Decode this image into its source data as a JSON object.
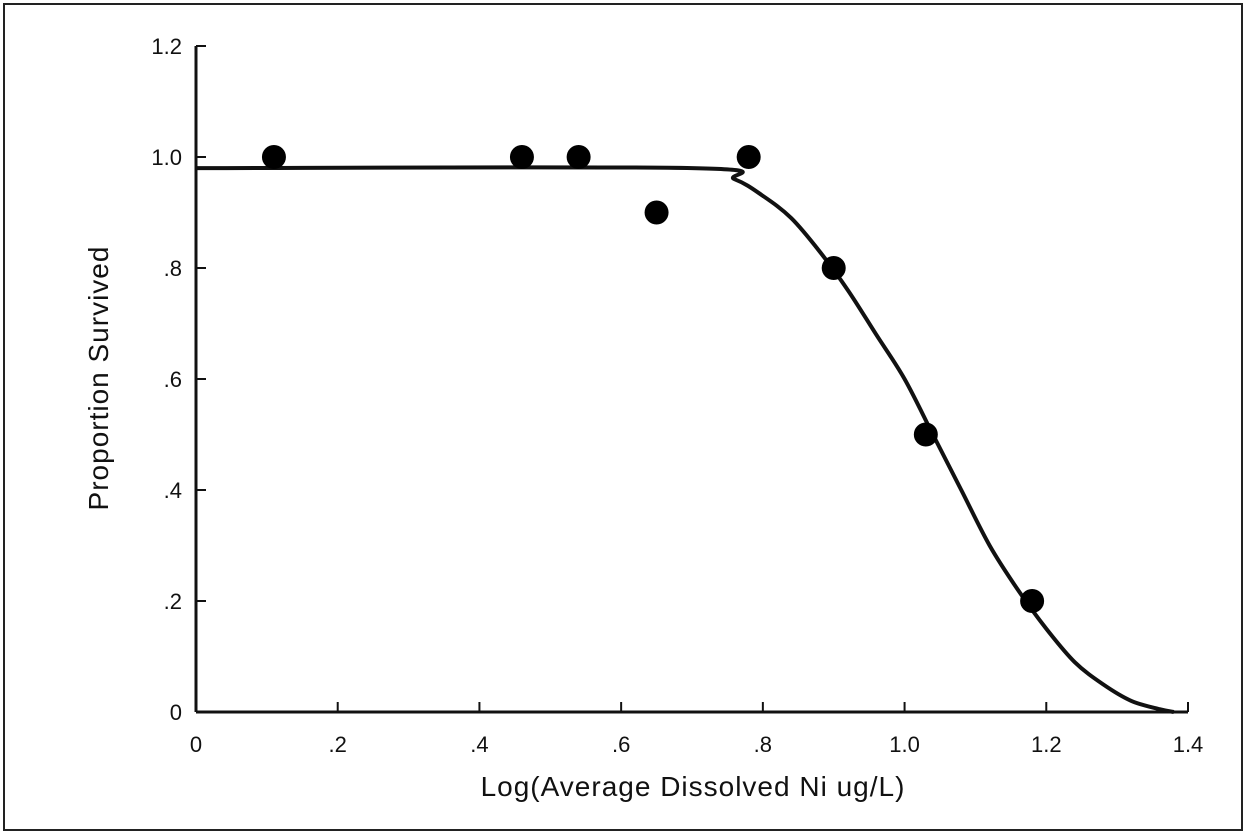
{
  "chart_data": {
    "type": "scatter",
    "title": "",
    "xlabel": "Log(Average Dissolved Ni ug/L)",
    "ylabel": "Proportion Survived",
    "xlim": [
      0,
      1.4
    ],
    "ylim": [
      0,
      1.2
    ],
    "grid": false,
    "legend": "none",
    "x_ticks": [
      {
        "value": 0,
        "label": "0"
      },
      {
        "value": 0.2,
        "label": ".2"
      },
      {
        "value": 0.4,
        "label": ".4"
      },
      {
        "value": 0.6,
        "label": ".6"
      },
      {
        "value": 0.8,
        "label": ".8"
      },
      {
        "value": 1.0,
        "label": "1.0"
      },
      {
        "value": 1.2,
        "label": "1.2"
      },
      {
        "value": 1.4,
        "label": "1.4"
      }
    ],
    "y_ticks": [
      {
        "value": 0,
        "label": "0"
      },
      {
        "value": 0.2,
        "label": ".2"
      },
      {
        "value": 0.4,
        "label": ".4"
      },
      {
        "value": 0.6,
        "label": ".6"
      },
      {
        "value": 0.8,
        "label": ".8"
      },
      {
        "value": 1.0,
        "label": "1.0"
      },
      {
        "value": 1.2,
        "label": "1.2"
      }
    ],
    "points": [
      {
        "x": 0.11,
        "y": 1.0
      },
      {
        "x": 0.46,
        "y": 1.0
      },
      {
        "x": 0.54,
        "y": 1.0
      },
      {
        "x": 0.65,
        "y": 0.9
      },
      {
        "x": 0.78,
        "y": 1.0
      },
      {
        "x": 0.9,
        "y": 0.8
      },
      {
        "x": 1.03,
        "y": 0.5
      },
      {
        "x": 1.18,
        "y": 0.2
      }
    ],
    "fitted_curve": [
      {
        "x": 0.0,
        "y": 0.98
      },
      {
        "x": 0.7,
        "y": 0.98
      },
      {
        "x": 0.76,
        "y": 0.96
      },
      {
        "x": 0.8,
        "y": 0.93
      },
      {
        "x": 0.84,
        "y": 0.89
      },
      {
        "x": 0.88,
        "y": 0.83
      },
      {
        "x": 0.92,
        "y": 0.76
      },
      {
        "x": 0.96,
        "y": 0.68
      },
      {
        "x": 1.0,
        "y": 0.6
      },
      {
        "x": 1.04,
        "y": 0.5
      },
      {
        "x": 1.08,
        "y": 0.4
      },
      {
        "x": 1.12,
        "y": 0.3
      },
      {
        "x": 1.16,
        "y": 0.22
      },
      {
        "x": 1.2,
        "y": 0.15
      },
      {
        "x": 1.24,
        "y": 0.09
      },
      {
        "x": 1.28,
        "y": 0.05
      },
      {
        "x": 1.32,
        "y": 0.02
      },
      {
        "x": 1.36,
        "y": 0.005
      },
      {
        "x": 1.38,
        "y": 0.0
      }
    ],
    "colors": {
      "axis": "#111111",
      "marker": "#000000",
      "curve": "#111111",
      "frame": "#222222"
    }
  }
}
